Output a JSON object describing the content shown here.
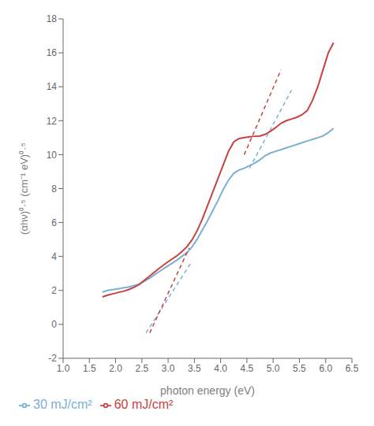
{
  "chart_data": {
    "type": "line",
    "xlabel": "photon energy (eV)",
    "ylabel": "(αhν)⁰·⁵ (cm⁻¹ eV)⁰·⁵",
    "xlim": [
      1.0,
      6.5
    ],
    "ylim": [
      -2,
      18
    ],
    "xticks": [
      {
        "value": 1.0,
        "label": "1.0"
      },
      1.5,
      {
        "value": 2.0,
        "label": "2.0"
      },
      2.5,
      {
        "value": 3.0,
        "label": "3.0"
      },
      3.5,
      {
        "value": 4.0,
        "label": "4.0"
      },
      4.5,
      {
        "value": 5.0,
        "label": "5.0"
      },
      5.5,
      {
        "value": 6.0,
        "label": "6.0"
      },
      6.5
    ],
    "yticks": [
      -2,
      0,
      2,
      4,
      6,
      8,
      10,
      12,
      14,
      16,
      18
    ],
    "grid": false,
    "legend": "lower left",
    "series": [
      {
        "name": "30 mJ/cm²",
        "color": "#7bafd4",
        "line_style": "solid",
        "x": [
          1.75,
          1.85,
          1.95,
          2.05,
          2.15,
          2.25,
          2.35,
          2.45,
          2.55,
          2.65,
          2.75,
          2.85,
          2.95,
          3.05,
          3.15,
          3.25,
          3.35,
          3.45,
          3.55,
          3.65,
          3.75,
          3.85,
          3.95,
          4.05,
          4.15,
          4.25,
          4.35,
          4.45,
          4.55,
          4.65,
          4.75,
          4.85,
          4.95,
          5.05,
          5.15,
          5.25,
          5.35,
          5.45,
          5.55,
          5.65,
          5.75,
          5.85,
          5.95,
          6.05,
          6.15
        ],
        "values": [
          1.9,
          2.0,
          2.05,
          2.1,
          2.15,
          2.2,
          2.28,
          2.38,
          2.55,
          2.72,
          2.95,
          3.15,
          3.35,
          3.55,
          3.75,
          3.98,
          4.2,
          4.55,
          5.0,
          5.55,
          6.1,
          6.7,
          7.3,
          7.95,
          8.5,
          8.9,
          9.1,
          9.2,
          9.35,
          9.5,
          9.7,
          9.95,
          10.1,
          10.2,
          10.3,
          10.4,
          10.5,
          10.6,
          10.7,
          10.8,
          10.9,
          11.0,
          11.1,
          11.3,
          11.55
        ]
      },
      {
        "name": "60 mJ/cm²",
        "color": "#c94040",
        "line_style": "solid",
        "x": [
          1.75,
          1.85,
          1.95,
          2.05,
          2.15,
          2.25,
          2.35,
          2.45,
          2.55,
          2.65,
          2.75,
          2.85,
          2.95,
          3.05,
          3.15,
          3.25,
          3.35,
          3.45,
          3.55,
          3.65,
          3.75,
          3.85,
          3.95,
          4.05,
          4.15,
          4.25,
          4.35,
          4.45,
          4.55,
          4.65,
          4.75,
          4.85,
          4.95,
          5.05,
          5.15,
          5.25,
          5.35,
          5.45,
          5.55,
          5.65,
          5.75,
          5.85,
          5.95,
          6.05,
          6.15
        ],
        "values": [
          1.62,
          1.72,
          1.8,
          1.88,
          1.95,
          2.05,
          2.18,
          2.35,
          2.6,
          2.85,
          3.1,
          3.35,
          3.58,
          3.8,
          4.0,
          4.25,
          4.55,
          4.95,
          5.5,
          6.2,
          7.0,
          7.8,
          8.6,
          9.4,
          10.2,
          10.75,
          10.95,
          11.0,
          11.05,
          11.08,
          11.1,
          11.2,
          11.38,
          11.6,
          11.85,
          12.0,
          12.1,
          12.2,
          12.35,
          12.6,
          13.2,
          14.0,
          15.0,
          16.0,
          16.6
        ]
      },
      {
        "color": "#7bafd4",
        "line_style": "dashed",
        "x": [
          2.58,
          3.45
        ],
        "values": [
          -0.5,
          3.7
        ]
      },
      {
        "color": "#c94040",
        "line_style": "dashed",
        "x": [
          2.65,
          3.4
        ],
        "values": [
          -0.5,
          4.5
        ]
      },
      {
        "color": "#7bafd4",
        "line_style": "dashed",
        "x": [
          4.55,
          5.35
        ],
        "values": [
          9.2,
          13.8
        ]
      },
      {
        "color": "#c94040",
        "line_style": "dashed",
        "x": [
          4.45,
          5.15
        ],
        "values": [
          10.0,
          15.0
        ]
      }
    ]
  }
}
